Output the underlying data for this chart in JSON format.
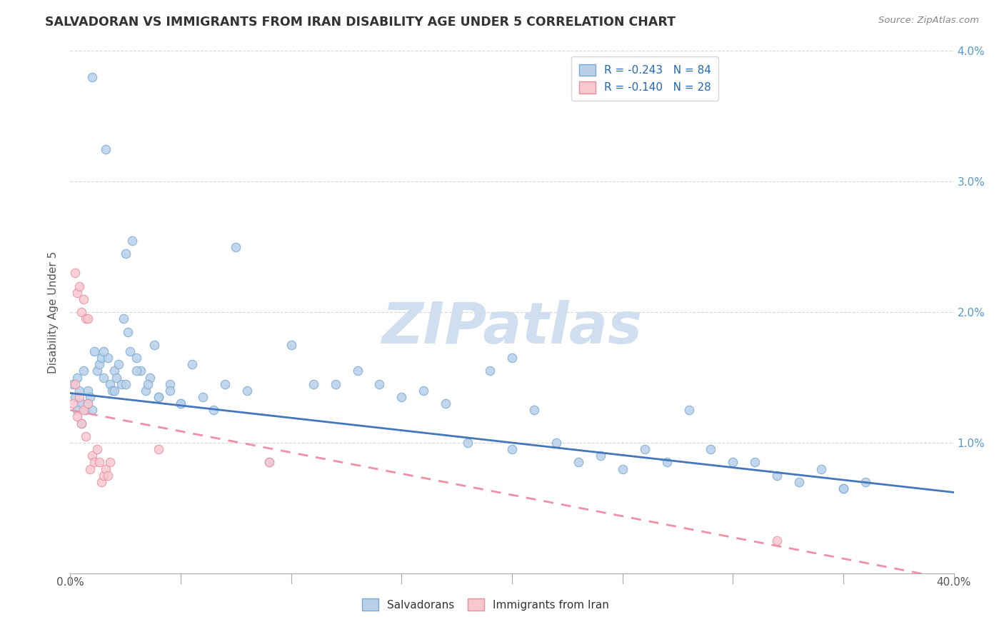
{
  "title": "SALVADORAN VS IMMIGRANTS FROM IRAN DISABILITY AGE UNDER 5 CORRELATION CHART",
  "source": "Source: ZipAtlas.com",
  "ylabel": "Disability Age Under 5",
  "xlim": [
    0.0,
    0.4
  ],
  "ylim": [
    0.0,
    0.04
  ],
  "xticks": [
    0.0,
    0.05,
    0.1,
    0.15,
    0.2,
    0.25,
    0.3,
    0.35,
    0.4
  ],
  "yticks": [
    0.0,
    0.01,
    0.02,
    0.03,
    0.04
  ],
  "xtick_labels": [
    "0.0%",
    "",
    "",
    "",
    "",
    "",
    "",
    "",
    "40.0%"
  ],
  "ytick_labels_left": [
    "",
    "",
    "",
    "",
    ""
  ],
  "ytick_labels_right": [
    "",
    "1.0%",
    "2.0%",
    "3.0%",
    "4.0%"
  ],
  "legend_r1": "R = -0.243",
  "legend_n1": "N = 84",
  "legend_r2": "R = -0.140",
  "legend_n2": "N = 28",
  "scatter_blue_face": "#b8d0ea",
  "scatter_blue_edge": "#7aaad0",
  "scatter_pink_face": "#f8c8d0",
  "scatter_pink_edge": "#e890a0",
  "blue_line_color": "#4477bb",
  "pink_line_color": "#f090a8",
  "watermark_color": "#d0dff0",
  "blue_scatter_x": [
    0.001,
    0.002,
    0.003,
    0.004,
    0.005,
    0.006,
    0.007,
    0.008,
    0.009,
    0.01,
    0.011,
    0.012,
    0.013,
    0.014,
    0.015,
    0.016,
    0.017,
    0.018,
    0.019,
    0.02,
    0.021,
    0.022,
    0.023,
    0.024,
    0.025,
    0.026,
    0.027,
    0.028,
    0.03,
    0.032,
    0.034,
    0.036,
    0.038,
    0.04,
    0.045,
    0.05,
    0.055,
    0.06,
    0.065,
    0.07,
    0.075,
    0.08,
    0.09,
    0.1,
    0.11,
    0.12,
    0.13,
    0.14,
    0.15,
    0.16,
    0.17,
    0.18,
    0.19,
    0.2,
    0.21,
    0.22,
    0.23,
    0.24,
    0.25,
    0.26,
    0.27,
    0.28,
    0.29,
    0.3,
    0.31,
    0.32,
    0.33,
    0.34,
    0.35,
    0.36,
    0.003,
    0.005,
    0.008,
    0.01,
    0.015,
    0.02,
    0.025,
    0.03,
    0.035,
    0.04,
    0.045,
    0.05,
    0.2,
    0.35
  ],
  "blue_scatter_y": [
    0.0145,
    0.0135,
    0.015,
    0.014,
    0.013,
    0.0155,
    0.0125,
    0.014,
    0.0135,
    0.038,
    0.017,
    0.0155,
    0.016,
    0.0165,
    0.015,
    0.0325,
    0.0165,
    0.0145,
    0.014,
    0.0155,
    0.015,
    0.016,
    0.0145,
    0.0195,
    0.0245,
    0.0185,
    0.017,
    0.0255,
    0.0165,
    0.0155,
    0.014,
    0.015,
    0.0175,
    0.0135,
    0.0145,
    0.013,
    0.016,
    0.0135,
    0.0125,
    0.0145,
    0.025,
    0.014,
    0.0085,
    0.0175,
    0.0145,
    0.0145,
    0.0155,
    0.0145,
    0.0135,
    0.014,
    0.013,
    0.01,
    0.0155,
    0.0095,
    0.0125,
    0.01,
    0.0085,
    0.009,
    0.008,
    0.0095,
    0.0085,
    0.0125,
    0.0095,
    0.0085,
    0.0085,
    0.0075,
    0.007,
    0.008,
    0.0065,
    0.007,
    0.0125,
    0.0115,
    0.013,
    0.0125,
    0.017,
    0.014,
    0.0145,
    0.0155,
    0.0145,
    0.0135,
    0.014,
    0.013,
    0.0165,
    0.0065
  ],
  "pink_scatter_x": [
    0.001,
    0.002,
    0.003,
    0.004,
    0.005,
    0.006,
    0.007,
    0.008,
    0.009,
    0.01,
    0.011,
    0.012,
    0.013,
    0.014,
    0.015,
    0.016,
    0.017,
    0.018,
    0.002,
    0.003,
    0.004,
    0.005,
    0.006,
    0.007,
    0.008,
    0.04,
    0.09,
    0.32
  ],
  "pink_scatter_y": [
    0.013,
    0.0145,
    0.012,
    0.0135,
    0.0115,
    0.0125,
    0.0105,
    0.013,
    0.008,
    0.009,
    0.0085,
    0.0095,
    0.0085,
    0.007,
    0.0075,
    0.008,
    0.0075,
    0.0085,
    0.023,
    0.0215,
    0.022,
    0.02,
    0.021,
    0.0195,
    0.0195,
    0.0095,
    0.0085,
    0.0025
  ],
  "blue_trend_y_start": 0.0138,
  "blue_trend_y_end": 0.0062,
  "pink_trend_y_start": 0.0125,
  "pink_trend_y_end": -0.0005
}
